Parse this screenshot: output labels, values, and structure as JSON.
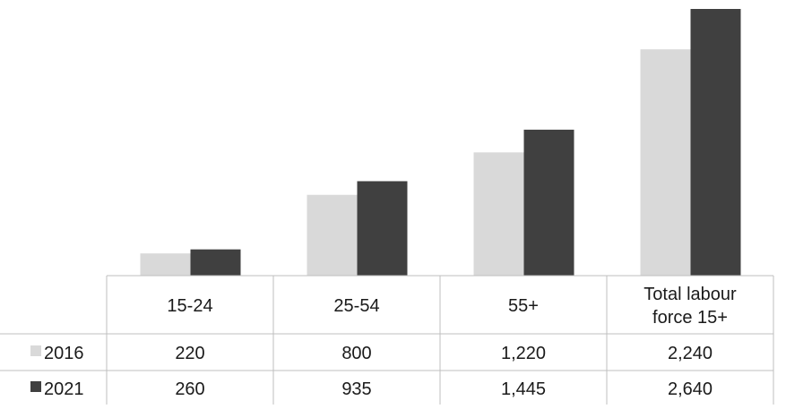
{
  "chart_data": {
    "type": "bar",
    "categories": [
      "15-24",
      "25-54",
      "55+",
      "Total labour force 15+"
    ],
    "category_lines": [
      [
        "15-24"
      ],
      [
        "25-54"
      ],
      [
        "55+"
      ],
      [
        "Total labour",
        "force 15+"
      ]
    ],
    "series": [
      {
        "name": "2016",
        "values": [
          220,
          800,
          1220,
          2240
        ],
        "labels": [
          "220",
          "800",
          "1,220",
          "2,240"
        ],
        "color": "#d9d9d9"
      },
      {
        "name": "2021",
        "values": [
          260,
          935,
          1445,
          2640
        ],
        "labels": [
          "260",
          "935",
          "1,445",
          "2,640"
        ],
        "color": "#404040"
      }
    ],
    "ylim": [
      0,
      2640
    ],
    "grid": false,
    "legend": "data-table-left",
    "gridline_color": "#bfbfbf"
  }
}
